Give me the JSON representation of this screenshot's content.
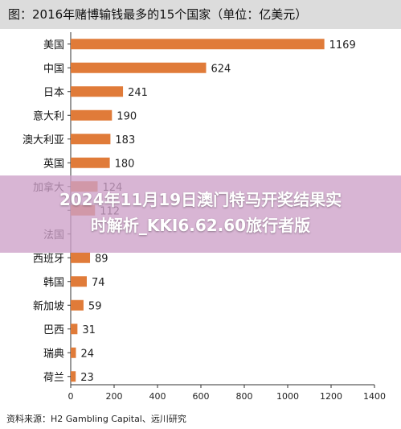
{
  "chart_data": {
    "type": "bar",
    "orientation": "horizontal",
    "title": "图：2016年赌博输钱最多的15个国家（单位：亿美元）",
    "categories": [
      "美国",
      "中国",
      "日本",
      "意大利",
      "澳大利亚",
      "英国",
      "加拿大",
      "",
      "法国",
      "西班牙",
      "韩国",
      "新加坡",
      "巴西",
      "瑞典",
      "荷兰"
    ],
    "values": [
      1169,
      624,
      241,
      190,
      183,
      180,
      124,
      112,
      null,
      89,
      74,
      59,
      31,
      24,
      23
    ],
    "xticks": [
      0,
      200,
      400,
      600,
      800,
      1000,
      1200,
      1400
    ],
    "xlim": [
      0,
      1400
    ],
    "grid": false,
    "bar_color": "#e07b39",
    "source": "资料来源：H2 Gambling Capital、远川研究"
  },
  "overlay": {
    "lines": [
      "2024年11月19日澳门特马开奖结果实",
      "时解析_KKI6.62.60旅行者版"
    ],
    "color": "#cda0c8"
  }
}
